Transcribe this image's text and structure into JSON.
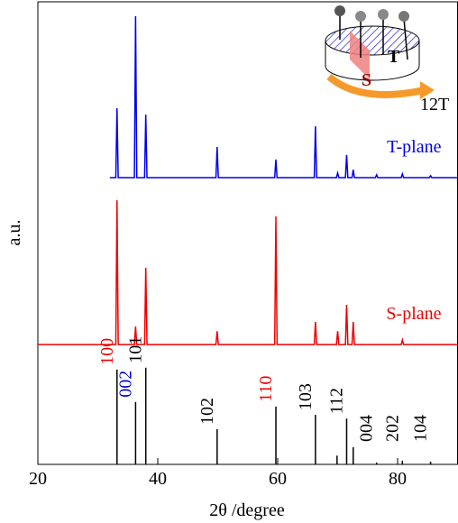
{
  "chart_data": {
    "type": "line",
    "xlabel": "2θ /degree",
    "ylabel": "a.u.",
    "xlim": [
      20,
      90
    ],
    "xticks": [
      20,
      40,
      60,
      80
    ],
    "ylim": [
      0,
      100
    ],
    "series": [
      {
        "name": "T-plane",
        "color": "#0000ee",
        "style": "line",
        "x": [
          32,
          33.0,
          33.2,
          33.4,
          36.1,
          36.3,
          36.5,
          37.8,
          38.0,
          38.2,
          49.7,
          49.9,
          50.1,
          59.5,
          59.7,
          59.9,
          66.1,
          66.3,
          66.5,
          69.8,
          70.0,
          70.2,
          71.3,
          71.5,
          71.7,
          72.4,
          72.6,
          72.8,
          76.3,
          76.5,
          76.7,
          80.6,
          80.8,
          81.0,
          85.3,
          85.5,
          85.7,
          90
        ],
        "values": [
          62.0,
          62.0,
          77.0,
          62.0,
          62.0,
          96.9,
          62.0,
          62.0,
          75.6,
          62.0,
          62.0,
          68.6,
          62.0,
          62.0,
          65.9,
          62.0,
          62.0,
          73.1,
          62.0,
          62.0,
          63.0,
          62.0,
          62.0,
          66.9,
          62.0,
          62.0,
          63.7,
          62.0,
          62.0,
          62.6,
          62.0,
          62.0,
          62.8,
          62.0,
          62.0,
          62.4,
          62.0,
          62.0
        ]
      },
      {
        "name": "S-plane",
        "color": "#ee0000",
        "style": "line",
        "x": [
          20,
          33.0,
          33.2,
          33.4,
          36.1,
          36.3,
          36.5,
          37.8,
          38.0,
          38.2,
          49.7,
          49.9,
          50.1,
          59.5,
          59.7,
          59.9,
          66.1,
          66.3,
          66.5,
          69.8,
          70.0,
          70.2,
          71.3,
          71.5,
          71.7,
          72.4,
          72.6,
          72.8,
          80.6,
          80.8,
          81.0,
          90
        ],
        "values": [
          25.9,
          25.9,
          57.1,
          25.9,
          25.9,
          29.8,
          25.9,
          25.9,
          42.5,
          25.9,
          25.9,
          28.8,
          25.9,
          25.9,
          53.6,
          25.9,
          25.9,
          30.8,
          25.9,
          25.9,
          28.8,
          25.9,
          25.9,
          34.5,
          25.9,
          25.9,
          30.8,
          25.9,
          25.9,
          26.9,
          25.9,
          25.9
        ]
      },
      {
        "color": "#000000",
        "style": "stick",
        "x": [
          33.2,
          36.3,
          38.0,
          49.9,
          59.7,
          66.3,
          69.9,
          71.5,
          72.6,
          76.5,
          80.8,
          85.5
        ],
        "values": [
          20.5,
          13.5,
          20.9,
          7.6,
          12.5,
          10.7,
          1.9,
          9.9,
          3.7,
          0.4,
          0.8,
          0.6
        ],
        "labels": [
          "100",
          "002",
          "101",
          "102",
          "110",
          "103",
          null,
          "112",
          null,
          "004",
          "202",
          "104"
        ],
        "label_colors": [
          "#ee0000",
          "#0000cc",
          "#000000",
          "#000000",
          "#ee0000",
          "#000000",
          null,
          "#000000",
          null,
          "#000000",
          "#000000",
          "#000000"
        ]
      }
    ],
    "inset": {
      "s_label": "S",
      "t_label": "T",
      "field_label": "12T"
    }
  }
}
